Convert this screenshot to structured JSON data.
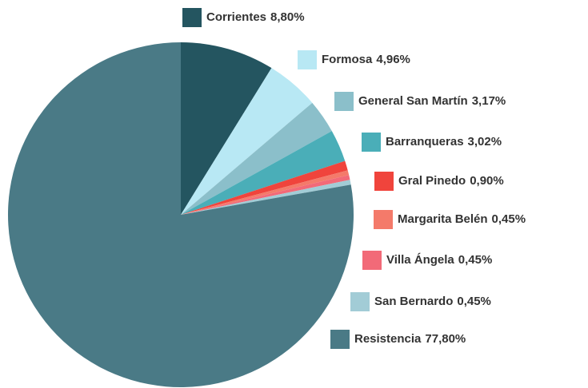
{
  "chart_data": {
    "type": "pie",
    "categories": [
      "Corrientes",
      "Formosa",
      "General San Martín",
      "Barranqueras",
      "Gral Pinedo",
      "Margarita Belén",
      "Villa Ángela",
      "San Bernardo",
      "Resistencia"
    ],
    "values": [
      8.8,
      4.96,
      3.17,
      3.02,
      0.9,
      0.45,
      0.45,
      0.45,
      77.8
    ],
    "value_labels": [
      "8,80%",
      "4,96%",
      "3,17%",
      "3,02%",
      "0,90%",
      "0,45%",
      "0,45%",
      "0,45%",
      "77,80%"
    ],
    "colors": [
      "#245560",
      "#b8e8f4",
      "#8bbfca",
      "#4aaeb8",
      "#f0443c",
      "#f47a6a",
      "#f26a78",
      "#a2ccd6",
      "#4a7a86"
    ]
  }
}
